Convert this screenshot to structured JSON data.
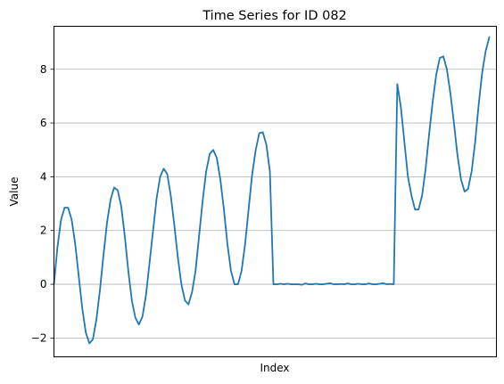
{
  "chart_data": {
    "type": "line",
    "title": "Time Series for ID 082",
    "xlabel": "Index",
    "ylabel": "Value",
    "x_range": [
      0,
      125
    ],
    "ylim": [
      -2.7,
      9.6
    ],
    "yticks": [
      -2,
      0,
      2,
      4,
      6,
      8
    ],
    "ytick_labels": [
      "−2",
      "0",
      "2",
      "4",
      "6",
      "8"
    ],
    "grid": "horizontal",
    "line_color": "#1f77b4",
    "series": [
      {
        "values": [
          0.0,
          1.4,
          2.4,
          2.85,
          2.85,
          2.4,
          1.5,
          0.3,
          -0.9,
          -1.8,
          -2.2,
          -2.05,
          -1.3,
          -0.2,
          1.1,
          2.3,
          3.15,
          3.6,
          3.5,
          2.9,
          1.8,
          0.5,
          -0.6,
          -1.25,
          -1.5,
          -1.2,
          -0.4,
          0.8,
          2.0,
          3.2,
          4.0,
          4.3,
          4.1,
          3.3,
          2.2,
          1.0,
          0.0,
          -0.6,
          -0.75,
          -0.3,
          0.5,
          1.8,
          3.1,
          4.2,
          4.85,
          5.0,
          4.7,
          3.9,
          2.8,
          1.5,
          0.5,
          0.0,
          0.0,
          0.5,
          1.5,
          2.8,
          4.1,
          5.0,
          5.62,
          5.66,
          5.2,
          4.2,
          0.0,
          0.0,
          0.02,
          0.0,
          0.02,
          0.0,
          0.0,
          0.0,
          -0.02,
          0.03,
          0.0,
          0.0,
          0.02,
          0.0,
          0.0,
          0.02,
          0.04,
          0.0,
          0.0,
          0.01,
          0.0,
          0.03,
          0.0,
          0.0,
          0.02,
          0.0,
          0.0,
          0.03,
          0.0,
          0.0,
          0.02,
          0.04,
          0.0,
          0.01,
          0.0,
          7.45,
          6.6,
          5.3,
          4.0,
          3.3,
          2.78,
          2.78,
          3.3,
          4.3,
          5.6,
          6.8,
          7.8,
          8.42,
          8.48,
          8.0,
          7.1,
          6.0,
          4.8,
          3.9,
          3.45,
          3.55,
          4.2,
          5.3,
          6.7,
          7.9,
          8.7,
          9.2
        ]
      }
    ]
  }
}
